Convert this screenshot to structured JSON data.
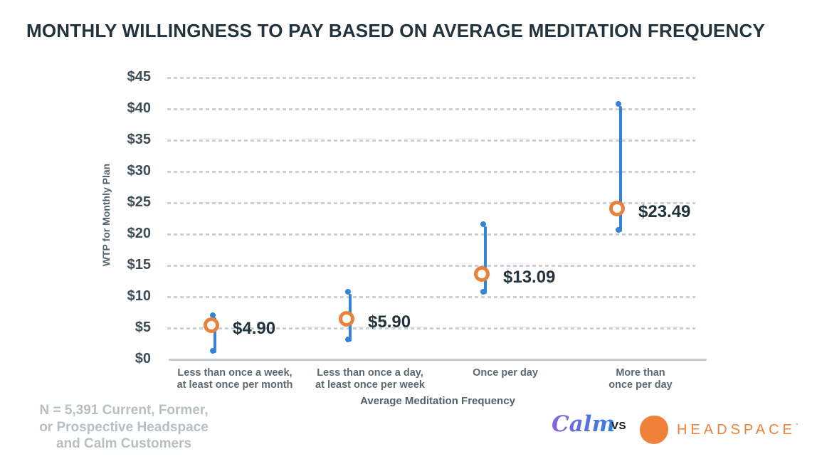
{
  "title": "MONTHLY WILLINGNESS TO PAY BASED ON AVERAGE MEDITATION FREQUENCY",
  "chart_data": {
    "type": "scatter",
    "title": "MONTHLY WILLINGNESS TO PAY BASED ON AVERAGE MEDITATION FREQUENCY",
    "xlabel": "Average Meditation Frequency",
    "ylabel": "WTP for Monthly Plan",
    "ylim": [
      0,
      45
    ],
    "ytick_values": [
      0,
      5,
      10,
      15,
      20,
      25,
      30,
      35,
      40,
      45
    ],
    "ytick_labels": [
      "$0",
      "$5",
      "$10",
      "$15",
      "$20",
      "$25",
      "$30",
      "$35",
      "$40",
      "$45"
    ],
    "grid": "horizontal-dashed",
    "legend": "none",
    "categories": [
      [
        "Less than once a week,",
        "at least once per month"
      ],
      [
        "Less than once a day,",
        "at least once per week"
      ],
      [
        "Once per day"
      ],
      [
        "More than",
        "once per day"
      ]
    ],
    "points": [
      {
        "wtp": 4.9,
        "label": "$4.90",
        "range_low": 1.0,
        "range_high": 6.7
      },
      {
        "wtp": 5.9,
        "label": "$5.90",
        "range_low": 2.8,
        "range_high": 10.5
      },
      {
        "wtp": 13.09,
        "label": "$13.09",
        "range_low": 10.5,
        "range_high": 21.2
      },
      {
        "wtp": 23.49,
        "label": "$23.49",
        "range_low": 20.3,
        "range_high": 40.4
      }
    ]
  },
  "note": {
    "line1": "N = 5,391 Current, Former,",
    "line2": "or Prospective Headspace",
    "line3": "and Calm Customers"
  },
  "logos": {
    "calm": "Calm",
    "vs": "VS",
    "headspace": "HEADSPACE",
    "headspace_mark": "°"
  },
  "colors": {
    "ink": "#22333e",
    "tick_ink": "#3e4d58",
    "axis_gray": "#53616b",
    "label_gray": "#5c6870",
    "note_gray": "#b7bec4",
    "grid": "#ccd2d7",
    "baseline": "#c3cad0",
    "range_blue": "#3583d6",
    "point_orange": "#e8813c",
    "headspace_orange": "#ef8138",
    "calm_gradient_start": "#8a63d6",
    "calm_gradient_end": "#2f7fe0"
  }
}
